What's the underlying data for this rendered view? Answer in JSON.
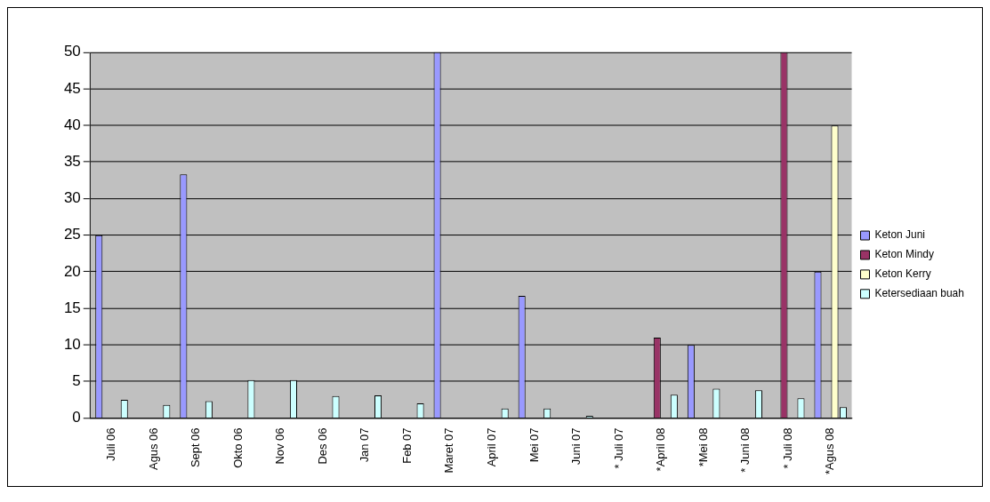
{
  "chart_data": {
    "type": "bar",
    "categories": [
      "Juli 06",
      "Agus 06",
      "Sept 06",
      "Okto 06",
      "Nov 06",
      "Des 06",
      "Jan 07",
      "Feb 07",
      "Maret 07",
      "April 07",
      "Mei 07",
      "Juni 07",
      "* Juli 07",
      "*April 08",
      "*Mei 08",
      "* Juni 08",
      "* Juli 08",
      "*Agus 08"
    ],
    "series": [
      {
        "name": "Keton Juni",
        "color": "#9999ff",
        "values": [
          25,
          0,
          33.3,
          0,
          0,
          0,
          0,
          0,
          50,
          0,
          16.7,
          0,
          0,
          0,
          10,
          0,
          0,
          20
        ]
      },
      {
        "name": "Keton Mindy",
        "color": "#993366",
        "values": [
          0,
          0,
          0,
          0,
          0,
          0,
          0,
          0,
          0,
          0,
          0,
          0,
          0,
          11,
          0,
          0,
          50,
          0
        ]
      },
      {
        "name": "Keton Kerry",
        "color": "#ffffcc",
        "values": [
          0,
          0,
          0,
          0,
          0,
          0,
          0,
          0,
          0,
          0,
          0,
          0,
          0,
          0,
          0,
          0,
          0,
          40
        ]
      },
      {
        "name": "Ketersediaan buah",
        "color": "#ccffff",
        "values": [
          2.5,
          1.8,
          2.3,
          5.2,
          5.2,
          3,
          3.1,
          2,
          0,
          1.3,
          1.3,
          0.3,
          null,
          3.2,
          4,
          3.8,
          2.7,
          1.5
        ]
      }
    ],
    "ylim": [
      0,
      50
    ],
    "yticks": [
      0,
      5,
      10,
      15,
      20,
      25,
      30,
      35,
      40,
      45,
      50
    ],
    "grid": "y",
    "legend": "right"
  }
}
